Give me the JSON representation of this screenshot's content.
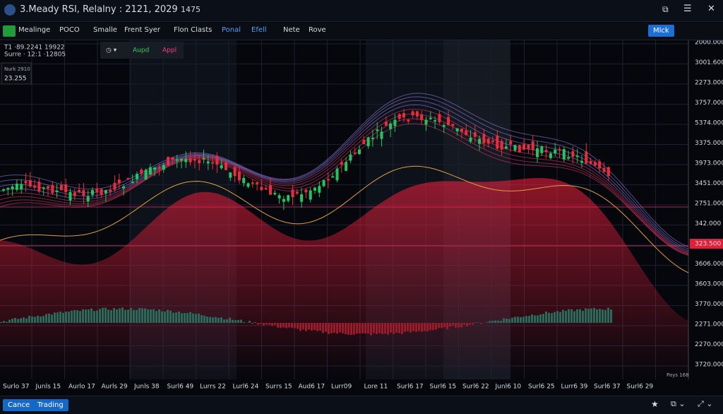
{
  "header": {
    "title": "3.Meady RSI, Relalny : 2121, 2029",
    "value": "1475"
  },
  "toolbar": {
    "items": [
      "Mealinge",
      "POCO",
      "Smalle",
      "Frent Syer",
      "Flon Clasts",
      "Ponal",
      "Efell",
      "Nete",
      "Rove"
    ],
    "button": "Mlck"
  },
  "overlay": {
    "line1": "T1 ·89.2241 19922",
    "line2": "Surre · 12:1 ·12805",
    "box_label": "Nurk 2910",
    "box_value": "23.255",
    "popup": [
      "Aupd",
      "Appl"
    ]
  },
  "price_axis": [
    "2000.000",
    "3001.600",
    "2273.000",
    "3757.000",
    "5374.000",
    "3375.000",
    "3973.000",
    "3451.000",
    "2751.000",
    "342.000",
    "323.500",
    "3606.000",
    "3603.000",
    "3770.000",
    "2271.000",
    "2270.000",
    "3720.000"
  ],
  "time_axis": [
    "Surlo 37",
    "Junls 15",
    "Aurlo 17",
    "Aurls 29",
    "Junls 38",
    "Surl6 49",
    "Lurrs 22",
    "Lurl6 24",
    "Surrs 15",
    "Aud6 17",
    "Lurr09",
    "Lore 11",
    "Surl6 17",
    "Surl6 15",
    "Surl6 22",
    "Junl6 10",
    "Surl6 25",
    "Lurr6 39",
    "Surl6 37",
    "Surl6 29"
  ],
  "corner_label": "Pays 168",
  "footer": {
    "buttons": [
      "Cance",
      "Trading"
    ]
  }
}
